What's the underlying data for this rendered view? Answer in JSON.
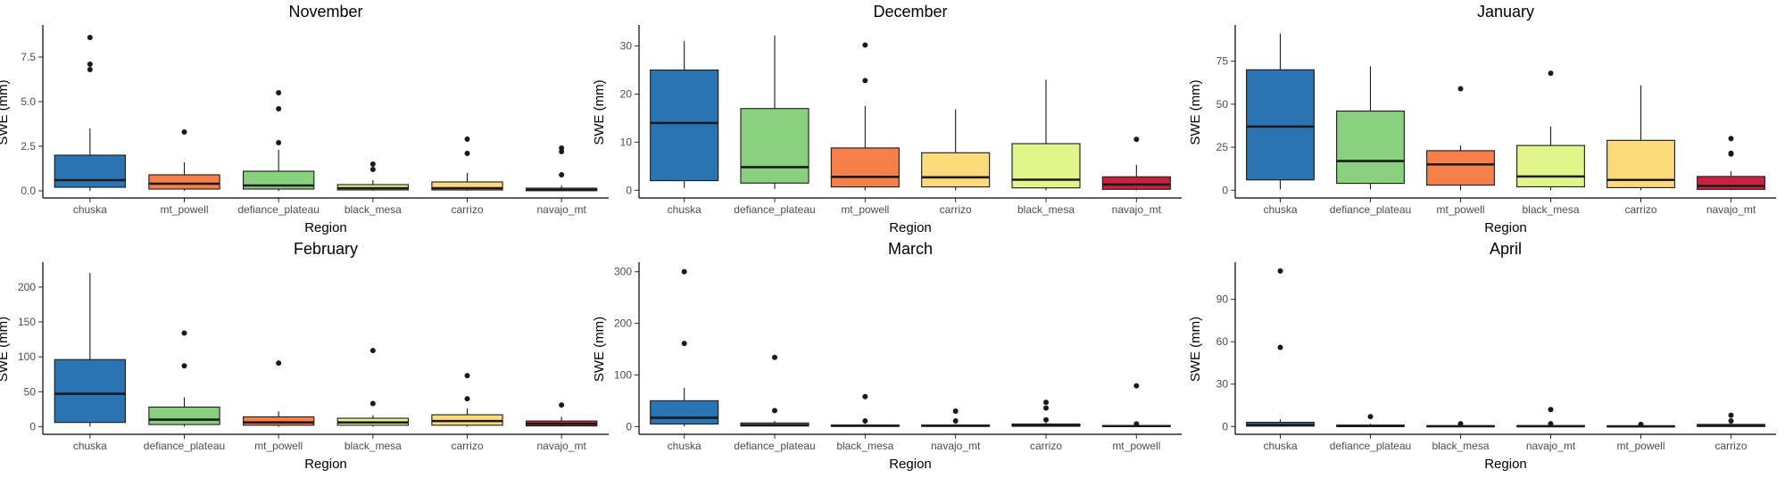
{
  "figure": {
    "xlabel": "Region",
    "ylabel": "SWE (mm)"
  },
  "colors": {
    "chuska": "#2B74B3",
    "defiance_plateau": "#89D17F",
    "mt_powell": "#F7804A",
    "black_mesa": "#E2F58A",
    "carrizo": "#FDDA7C",
    "navajo_mt": "#C9223F"
  },
  "chart_data": [
    {
      "type": "box",
      "title": "November",
      "xlabel": "Region",
      "ylabel": "SWE (mm)",
      "ylim": [
        -0.4,
        9.2
      ],
      "yticks": [
        0,
        2.5,
        5,
        7.5
      ],
      "ytick_labels": [
        "0.0",
        "2.5",
        "5.0",
        "7.5"
      ],
      "categories": [
        "chuska",
        "mt_powell",
        "defiance_plateau",
        "black_mesa",
        "carrizo",
        "navajo_mt"
      ],
      "boxes": [
        {
          "min": 0.0,
          "q1": 0.2,
          "median": 0.6,
          "q3": 2.0,
          "max": 3.5,
          "outliers": [
            6.8,
            7.1,
            8.6
          ]
        },
        {
          "min": 0.0,
          "q1": 0.1,
          "median": 0.4,
          "q3": 0.9,
          "max": 1.6,
          "outliers": [
            3.3
          ]
        },
        {
          "min": 0.0,
          "q1": 0.1,
          "median": 0.3,
          "q3": 1.1,
          "max": 2.3,
          "outliers": [
            2.7,
            4.6,
            5.5
          ]
        },
        {
          "min": 0.0,
          "q1": 0.05,
          "median": 0.15,
          "q3": 0.35,
          "max": 0.6,
          "outliers": [
            1.2,
            1.5
          ]
        },
        {
          "min": 0.0,
          "q1": 0.05,
          "median": 0.15,
          "q3": 0.5,
          "max": 1.0,
          "outliers": [
            2.1,
            2.9
          ]
        },
        {
          "min": 0.0,
          "q1": 0.01,
          "median": 0.05,
          "q3": 0.15,
          "max": 0.3,
          "outliers": [
            0.9,
            2.2,
            2.4
          ]
        }
      ]
    },
    {
      "type": "box",
      "title": "December",
      "xlabel": "Region",
      "ylabel": "SWE (mm)",
      "ylim": [
        -1.6,
        34
      ],
      "yticks": [
        0,
        10,
        20,
        30
      ],
      "ytick_labels": [
        "0",
        "10",
        "20",
        "30"
      ],
      "categories": [
        "chuska",
        "defiance_plateau",
        "mt_powell",
        "carrizo",
        "black_mesa",
        "navajo_mt"
      ],
      "boxes": [
        {
          "min": 0.5,
          "q1": 2.0,
          "median": 14.0,
          "q3": 25.0,
          "max": 31.0,
          "outliers": []
        },
        {
          "min": 0.3,
          "q1": 1.5,
          "median": 4.8,
          "q3": 17.0,
          "max": 32.2,
          "outliers": []
        },
        {
          "min": 0.0,
          "q1": 0.7,
          "median": 2.8,
          "q3": 8.8,
          "max": 17.5,
          "outliers": [
            22.8,
            30.2
          ]
        },
        {
          "min": 0.0,
          "q1": 0.7,
          "median": 2.7,
          "q3": 7.8,
          "max": 16.8,
          "outliers": []
        },
        {
          "min": 0.0,
          "q1": 0.5,
          "median": 2.2,
          "q3": 9.7,
          "max": 23.0,
          "outliers": []
        },
        {
          "min": 0.0,
          "q1": 0.2,
          "median": 1.2,
          "q3": 2.8,
          "max": 5.3,
          "outliers": [
            10.6
          ]
        }
      ]
    },
    {
      "type": "box",
      "title": "January",
      "xlabel": "Region",
      "ylabel": "SWE (mm)",
      "ylim": [
        -4.5,
        95
      ],
      "yticks": [
        0,
        25,
        50,
        75
      ],
      "ytick_labels": [
        "0",
        "25",
        "50",
        "75"
      ],
      "categories": [
        "chuska",
        "defiance_plateau",
        "mt_powell",
        "black_mesa",
        "carrizo",
        "navajo_mt"
      ],
      "boxes": [
        {
          "min": 0.5,
          "q1": 6.0,
          "median": 37.0,
          "q3": 70.0,
          "max": 91.0,
          "outliers": []
        },
        {
          "min": 0.5,
          "q1": 4.0,
          "median": 17.0,
          "q3": 46.0,
          "max": 72.0,
          "outliers": []
        },
        {
          "min": 0.0,
          "q1": 3.0,
          "median": 15.0,
          "q3": 23.0,
          "max": 26.0,
          "outliers": [
            59.0
          ]
        },
        {
          "min": 0.0,
          "q1": 2.0,
          "median": 8.0,
          "q3": 26.0,
          "max": 37.0,
          "outliers": [
            68.0
          ]
        },
        {
          "min": 0.0,
          "q1": 1.5,
          "median": 6.0,
          "q3": 29.0,
          "max": 61.0,
          "outliers": []
        },
        {
          "min": 0.0,
          "q1": 0.5,
          "median": 2.5,
          "q3": 8.0,
          "max": 11.0,
          "outliers": [
            21.0,
            21.5,
            30.0
          ]
        }
      ]
    },
    {
      "type": "box",
      "title": "February",
      "xlabel": "Region",
      "ylabel": "SWE (mm)",
      "ylim": [
        -11,
        233
      ],
      "yticks": [
        0,
        50,
        100,
        150,
        200
      ],
      "ytick_labels": [
        "0",
        "50",
        "100",
        "150",
        "200"
      ],
      "categories": [
        "chuska",
        "defiance_plateau",
        "mt_powell",
        "black_mesa",
        "carrizo",
        "navajo_mt"
      ],
      "boxes": [
        {
          "min": 0.0,
          "q1": 6.0,
          "median": 47.0,
          "q3": 96.0,
          "max": 220.0,
          "outliers": []
        },
        {
          "min": 0.0,
          "q1": 3.0,
          "median": 10.0,
          "q3": 28.0,
          "max": 42.0,
          "outliers": [
            87.0,
            134.0
          ]
        },
        {
          "min": 0.0,
          "q1": 2.0,
          "median": 6.0,
          "q3": 14.0,
          "max": 22.0,
          "outliers": [
            91.0
          ]
        },
        {
          "min": 0.0,
          "q1": 2.0,
          "median": 6.0,
          "q3": 12.0,
          "max": 16.0,
          "outliers": [
            33.0,
            109.0
          ]
        },
        {
          "min": 0.0,
          "q1": 2.0,
          "median": 8.0,
          "q3": 17.0,
          "max": 26.0,
          "outliers": [
            40.0,
            73.0
          ]
        },
        {
          "min": 0.0,
          "q1": 1.0,
          "median": 4.0,
          "q3": 8.0,
          "max": 14.0,
          "outliers": [
            31.0
          ]
        }
      ]
    },
    {
      "type": "box",
      "title": "March",
      "xlabel": "Region",
      "ylabel": "SWE (mm)",
      "ylim": [
        -15,
        315
      ],
      "yticks": [
        0,
        100,
        200,
        300
      ],
      "ytick_labels": [
        "0",
        "100",
        "200",
        "300"
      ],
      "categories": [
        "chuska",
        "defiance_plateau",
        "black_mesa",
        "navajo_mt",
        "carrizo",
        "mt_powell"
      ],
      "boxes": [
        {
          "min": 0.0,
          "q1": 5.0,
          "median": 17.0,
          "q3": 50.0,
          "max": 75.0,
          "outliers": [
            161.0,
            300.0
          ]
        },
        {
          "min": 0.0,
          "q1": 1.0,
          "median": 3.0,
          "q3": 7.0,
          "max": 11.0,
          "outliers": [
            31.0,
            134.0
          ]
        },
        {
          "min": 0.0,
          "q1": 0.5,
          "median": 1.5,
          "q3": 3.0,
          "max": 5.0,
          "outliers": [
            11.0,
            58.0
          ]
        },
        {
          "min": 0.0,
          "q1": 0.5,
          "median": 1.5,
          "q3": 3.0,
          "max": 5.0,
          "outliers": [
            11.0,
            30.0
          ]
        },
        {
          "min": 0.0,
          "q1": 0.5,
          "median": 2.0,
          "q3": 5.0,
          "max": 8.0,
          "outliers": [
            13.0,
            36.0,
            47.0
          ]
        },
        {
          "min": 0.0,
          "q1": 0.3,
          "median": 1.0,
          "q3": 2.0,
          "max": 3.0,
          "outliers": [
            5.0,
            79.0
          ]
        }
      ]
    },
    {
      "type": "box",
      "title": "April",
      "xlabel": "Region",
      "ylabel": "SWE (mm)",
      "ylim": [
        -5.5,
        115
      ],
      "yticks": [
        0,
        30,
        60,
        90
      ],
      "ytick_labels": [
        "0",
        "30",
        "60",
        "90"
      ],
      "categories": [
        "chuska",
        "defiance_plateau",
        "black_mesa",
        "navajo_mt",
        "mt_powell",
        "carrizo"
      ],
      "boxes": [
        {
          "min": 0.0,
          "q1": 0.3,
          "median": 1.0,
          "q3": 3.0,
          "max": 5.0,
          "outliers": [
            56.0,
            110.0
          ]
        },
        {
          "min": 0.0,
          "q1": 0.1,
          "median": 0.4,
          "q3": 1.0,
          "max": 2.0,
          "outliers": [
            7.0
          ]
        },
        {
          "min": 0.0,
          "q1": 0.1,
          "median": 0.2,
          "q3": 0.5,
          "max": 1.0,
          "outliers": [
            2.0
          ]
        },
        {
          "min": 0.0,
          "q1": 0.1,
          "median": 0.2,
          "q3": 0.6,
          "max": 1.5,
          "outliers": [
            2.0,
            12.0
          ]
        },
        {
          "min": 0.0,
          "q1": 0.05,
          "median": 0.15,
          "q3": 0.4,
          "max": 0.8,
          "outliers": [
            1.5
          ]
        },
        {
          "min": 0.0,
          "q1": 0.1,
          "median": 0.5,
          "q3": 1.5,
          "max": 3.0,
          "outliers": [
            4.0,
            8.0
          ]
        }
      ]
    }
  ]
}
